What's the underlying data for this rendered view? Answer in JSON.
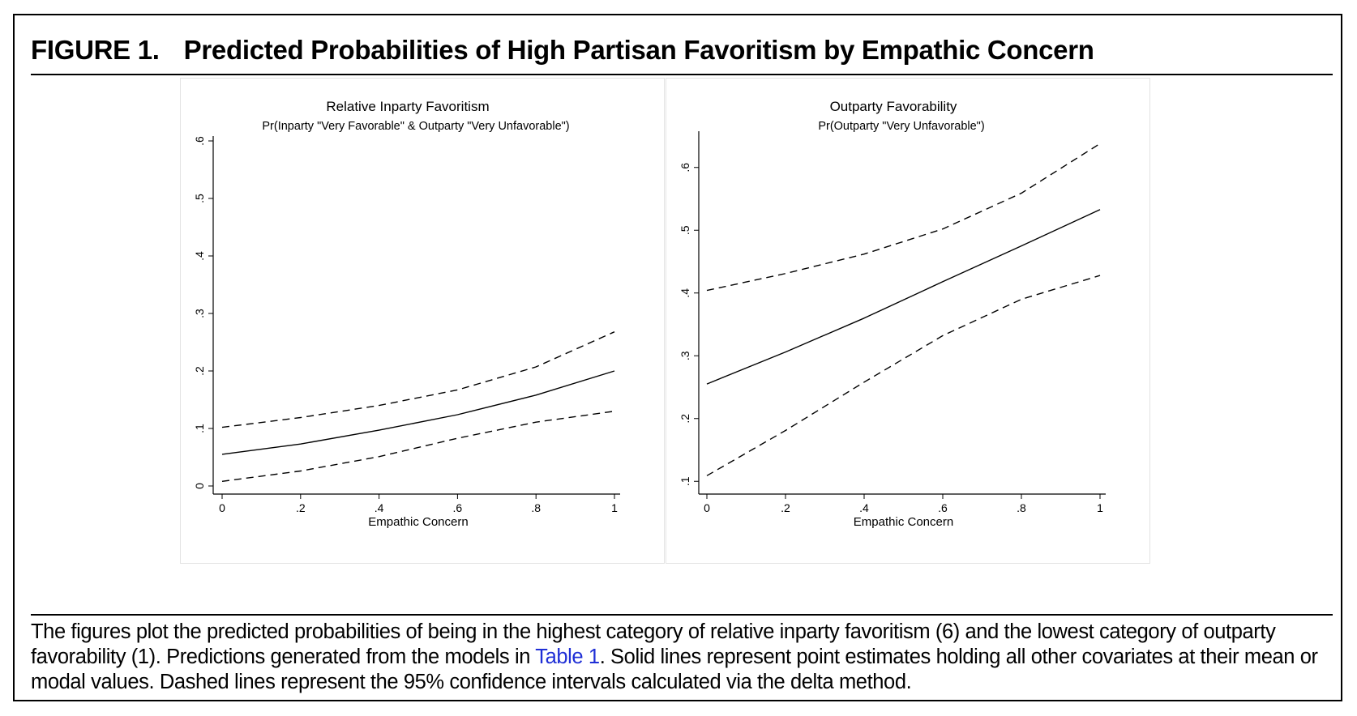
{
  "figure": {
    "label": "FIGURE 1.",
    "title": "Predicted Probabilities of High Partisan Favoritism by Empathic Concern"
  },
  "caption": {
    "text_before": "The figures plot the predicted probabilities of being in the highest category of relative inparty favoritism (6) and the lowest category of outparty favorability (1). Predictions generated from the models in ",
    "link_text": "Table 1",
    "text_after": ". Solid lines represent point estimates holding all other covariates at their mean or modal values. Dashed lines represent the 95% confidence intervals calculated via the delta method."
  },
  "colors": {
    "line": "#000000",
    "link": "#1f2fd6",
    "panel_border": "#e3e3e3"
  },
  "chart_data": [
    {
      "type": "line",
      "title": "Relative Inparty Favoritism",
      "subtitle": "Pr(Inparty \"Very Favorable\" & Outparty \"Very Unfavorable\")",
      "xlabel": "Empathic Concern",
      "ylabel": "",
      "x": [
        0,
        0.2,
        0.4,
        0.6,
        0.8,
        1
      ],
      "xlim": [
        0,
        1
      ],
      "ylim": [
        0,
        0.6
      ],
      "xticks": [
        0,
        0.2,
        0.4,
        0.6,
        0.8,
        1
      ],
      "xtick_labels": [
        "0",
        ".2",
        ".4",
        ".6",
        ".8",
        "1"
      ],
      "yticks": [
        0,
        0.1,
        0.2,
        0.3,
        0.4,
        0.5,
        0.6
      ],
      "ytick_labels": [
        "0",
        ".1",
        ".2",
        ".3",
        ".4",
        ".5",
        ".6"
      ],
      "grid": false,
      "series": [
        {
          "role": "estimate",
          "style": "solid",
          "values": [
            0.055,
            0.073,
            0.097,
            0.124,
            0.158,
            0.2
          ]
        },
        {
          "role": "upper",
          "style": "dashed",
          "values": [
            0.102,
            0.119,
            0.14,
            0.167,
            0.207,
            0.268
          ]
        },
        {
          "role": "lower",
          "style": "dashed",
          "values": [
            0.008,
            0.026,
            0.051,
            0.083,
            0.111,
            0.13
          ]
        }
      ]
    },
    {
      "type": "line",
      "title": "Outparty Favorability",
      "subtitle": "Pr(Outparty \"Very Unfavorable\")",
      "xlabel": "Empathic Concern",
      "ylabel": "",
      "x": [
        0,
        0.2,
        0.4,
        0.6,
        0.8,
        1
      ],
      "xlim": [
        0,
        1
      ],
      "ylim": [
        0.09,
        0.65
      ],
      "xticks": [
        0,
        0.2,
        0.4,
        0.6,
        0.8,
        1
      ],
      "xtick_labels": [
        "0",
        ".2",
        ".4",
        ".6",
        ".8",
        "1"
      ],
      "yticks": [
        0.1,
        0.2,
        0.3,
        0.4,
        0.5,
        0.6
      ],
      "ytick_labels": [
        ".1",
        ".2",
        ".3",
        ".4",
        ".5",
        ".6"
      ],
      "grid": false,
      "series": [
        {
          "role": "estimate",
          "style": "solid",
          "values": [
            0.255,
            0.306,
            0.36,
            0.418,
            0.475,
            0.533
          ]
        },
        {
          "role": "upper",
          "style": "dashed",
          "values": [
            0.404,
            0.431,
            0.462,
            0.502,
            0.559,
            0.638
          ]
        },
        {
          "role": "lower",
          "style": "dashed",
          "values": [
            0.109,
            0.181,
            0.258,
            0.332,
            0.39,
            0.428
          ]
        }
      ]
    }
  ]
}
